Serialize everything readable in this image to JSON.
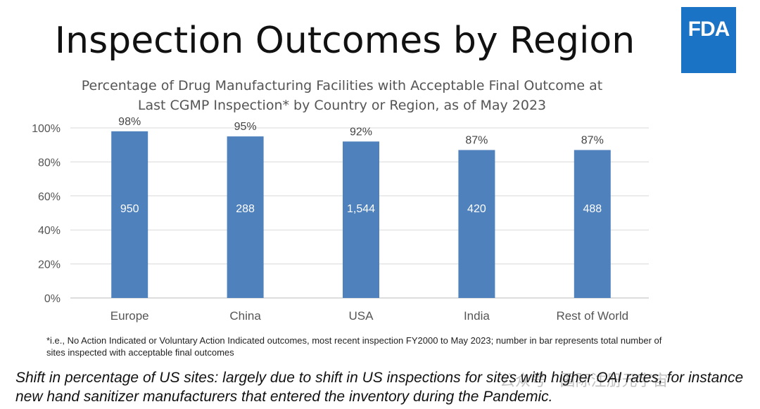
{
  "title": "Inspection Outcomes by Region",
  "logo_text": "FDA",
  "colors": {
    "bar": "#4f81bd",
    "logo": "#1a73c4"
  },
  "chart_data": {
    "type": "bar",
    "title": "Percentage of Drug Manufacturing Facilities with Acceptable Final Outcome at Last CGMP Inspection* by Country or Region, as of May 2023",
    "title_lines": [
      "Percentage of Drug Manufacturing Facilities with Acceptable Final Outcome at",
      "Last CGMP Inspection* by Country or Region, as of May 2023"
    ],
    "categories": [
      "Europe",
      "China",
      "USA",
      "India",
      "Rest of World"
    ],
    "values": [
      98,
      95,
      92,
      87,
      87
    ],
    "value_labels": [
      "98%",
      "95%",
      "92%",
      "87%",
      "87%"
    ],
    "bar_counts": [
      "950",
      "288",
      "1,544",
      "420",
      "488"
    ],
    "ylim": [
      0,
      100
    ],
    "yticks": [
      0,
      20,
      40,
      60,
      80,
      100
    ],
    "ytick_labels": [
      "0%",
      "20%",
      "40%",
      "60%",
      "80%",
      "100%"
    ],
    "grid": true,
    "xlabel": "",
    "ylabel": ""
  },
  "footnote": "*i.e., No Action Indicated or Voluntary Action Indicated outcomes, most recent inspection FY2000 to May 2023; number in bar represents total number of sites inspected with acceptable final outcomes",
  "note": "Shift in percentage of US sites: largely due to shift in US inspections for sites with higher OAI rates, for instance new hand sanitizer manufacturers that entered the inventory during the Pandemic.",
  "watermark": "公众号 · 国际注册元宇宙"
}
